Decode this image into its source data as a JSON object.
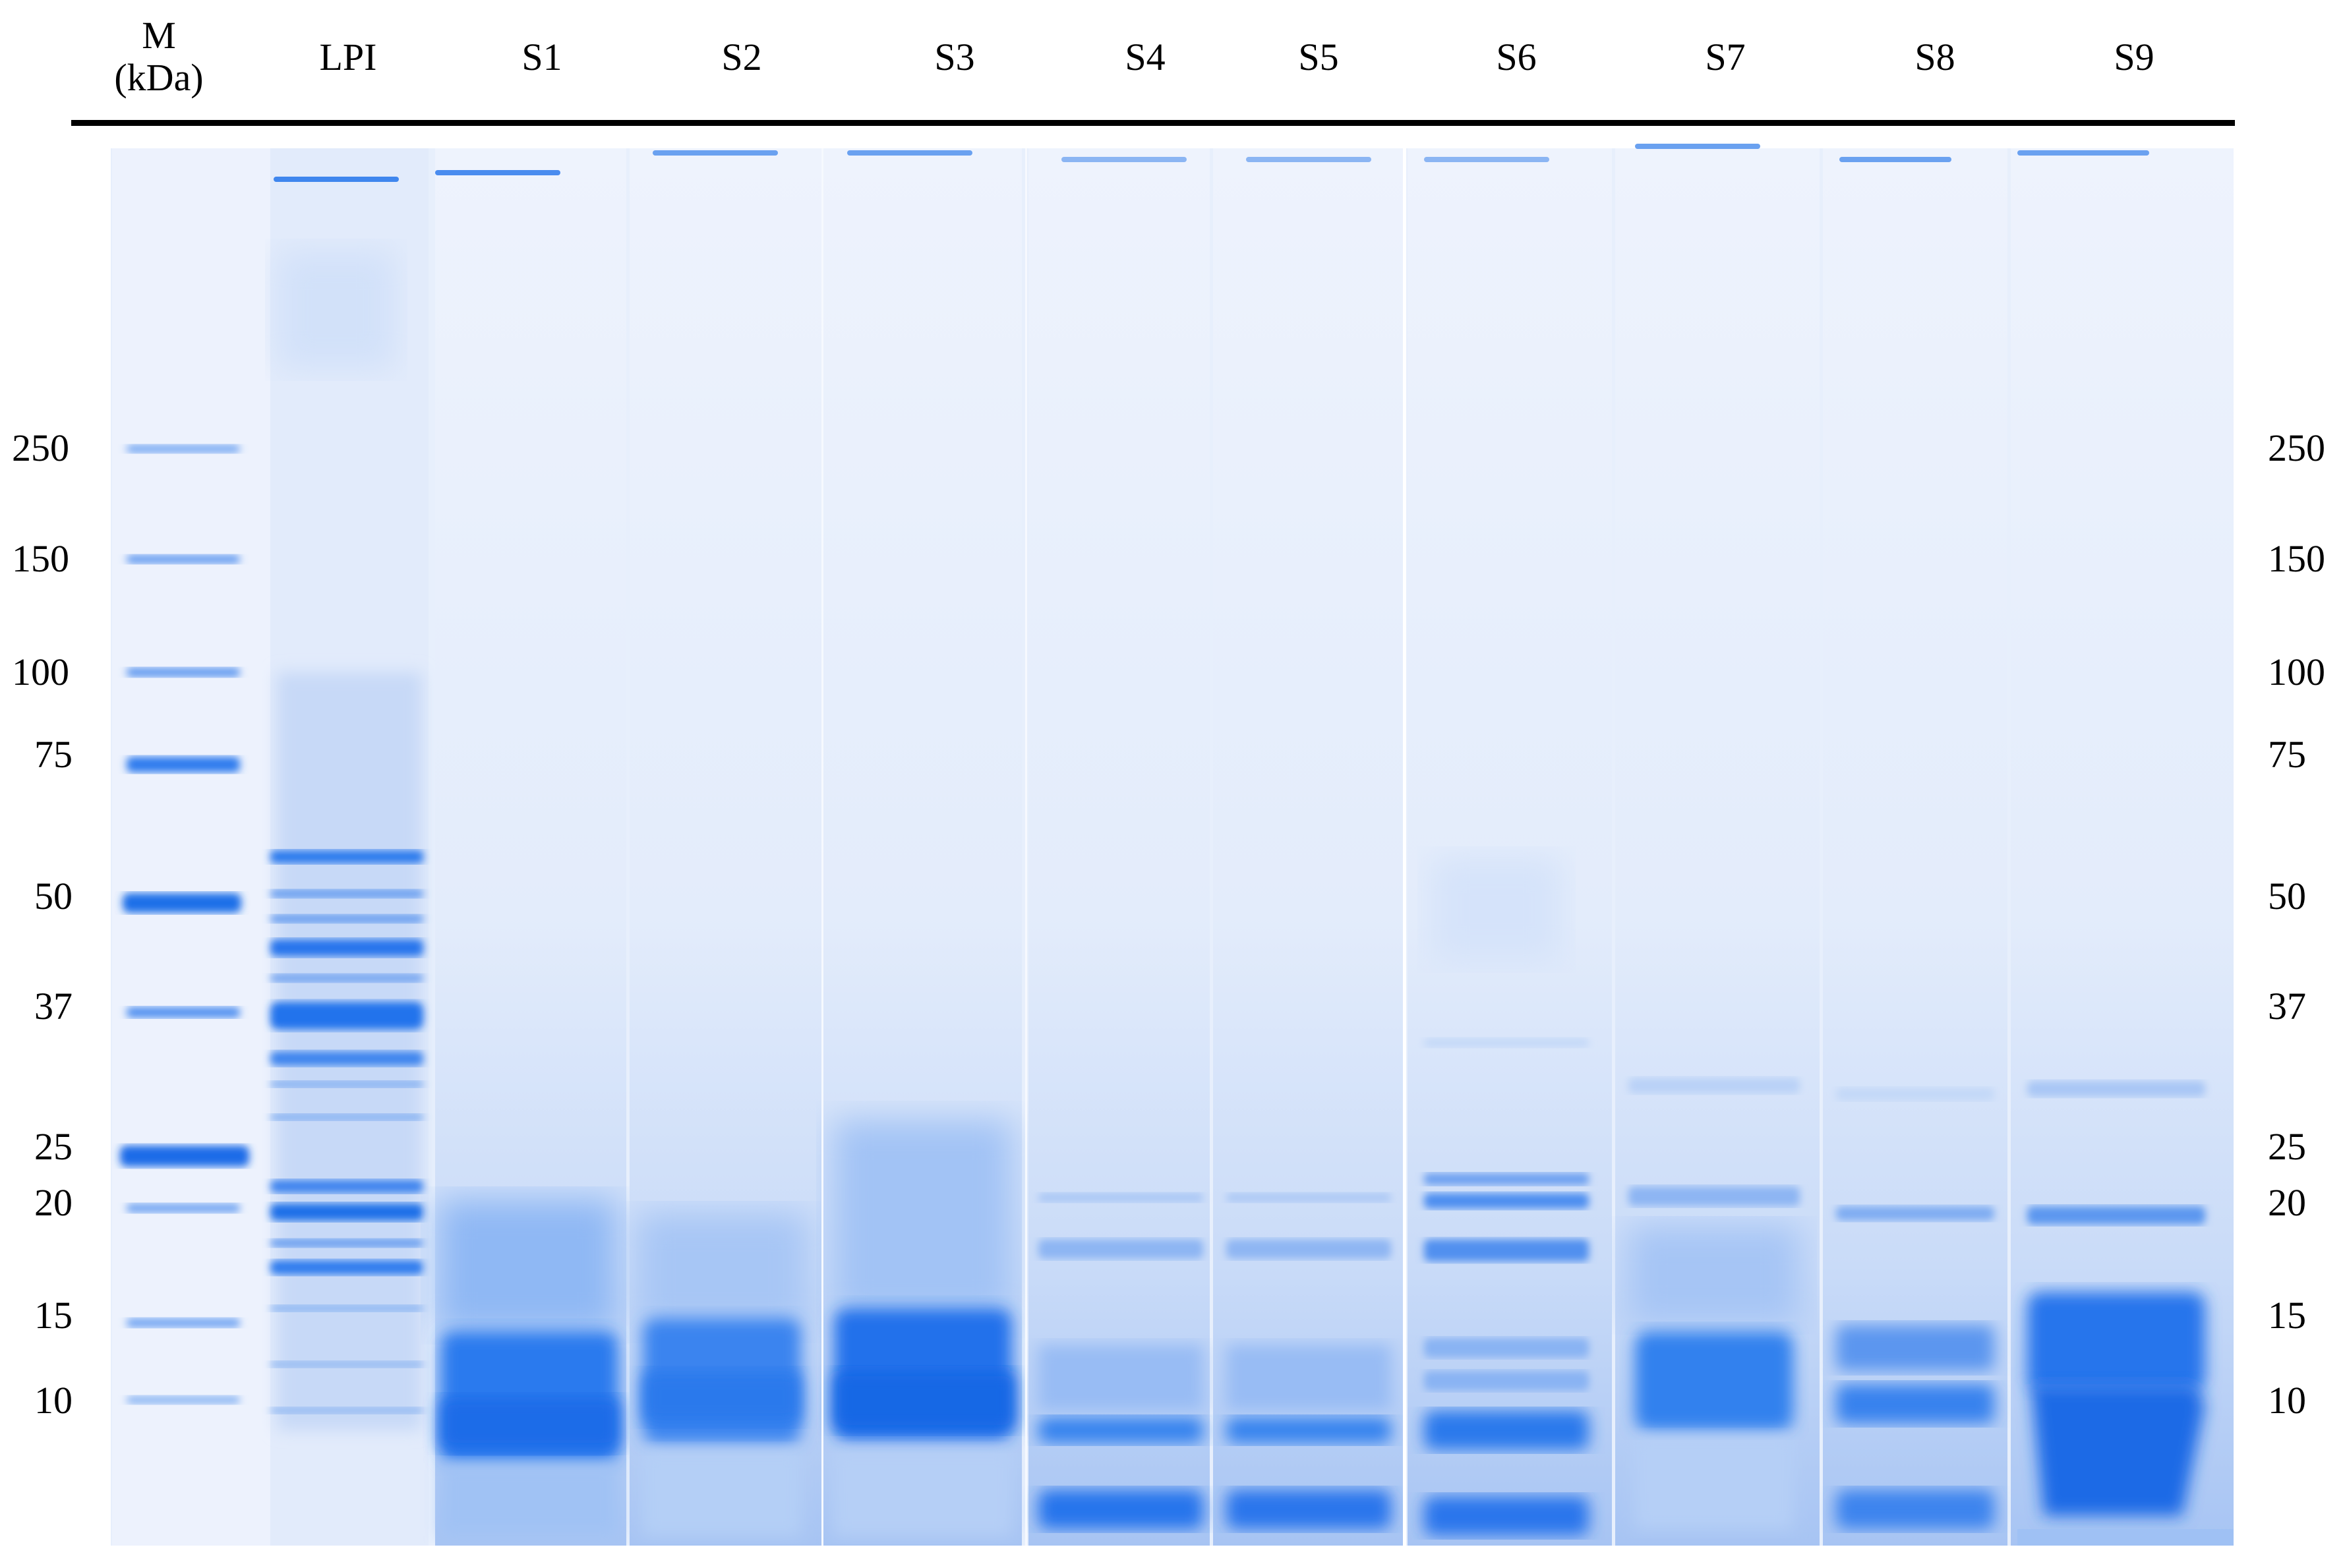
{
  "header": {
    "marker_label_line1": "M",
    "marker_label_line2": "(kDa)",
    "lanes": [
      "LPI",
      "S1",
      "S2",
      "S3",
      "S4",
      "S5",
      "S6",
      "S7",
      "S8",
      "S9"
    ]
  },
  "molecular_weights_left": [
    "250",
    "150",
    "100",
    "75",
    "50",
    "37",
    "25",
    "20",
    "15",
    "10"
  ],
  "molecular_weights_right": [
    "250",
    "150",
    "100",
    "75",
    "50",
    "37",
    "25",
    "20",
    "15",
    "10"
  ],
  "colors": {
    "gel_background": "#e6eefc",
    "band_dark": "#1f6fe6",
    "band_mid": "#4d8ef0",
    "band_light": "#a9c6f5",
    "divider": "#ffffff"
  }
}
